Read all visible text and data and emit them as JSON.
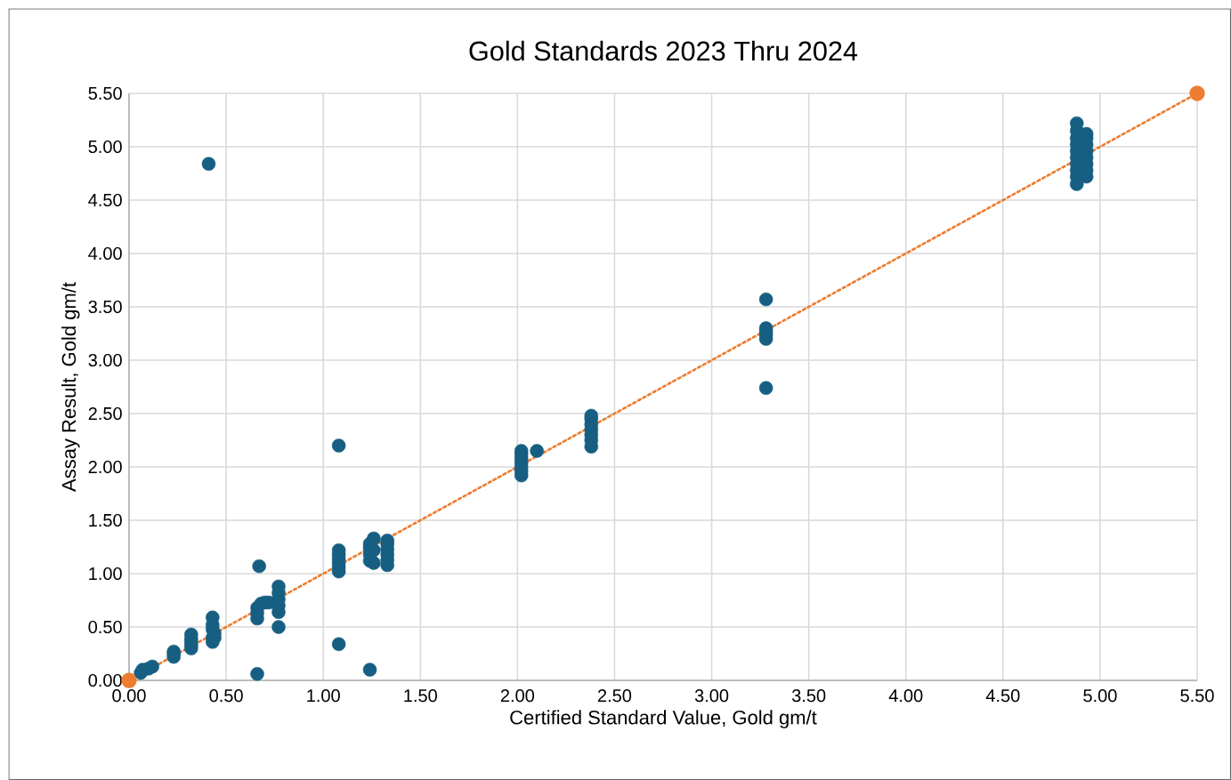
{
  "chart_data": {
    "type": "scatter",
    "title": "Gold  Standards 2023 Thru 2024",
    "xlabel": "Certified Standard Value, Gold gm/t",
    "ylabel": "Assay Result, Gold gm/t",
    "xlim": [
      0,
      5.5
    ],
    "ylim": [
      0,
      5.5
    ],
    "xticks": [
      {
        "value": 0,
        "label": "0.00"
      },
      {
        "value": 0.5,
        "label": "0.50"
      },
      {
        "value": 1,
        "label": "1.00"
      },
      {
        "value": 1.5,
        "label": "1.50"
      },
      {
        "value": 2,
        "label": "2.00"
      },
      {
        "value": 2.5,
        "label": "2.50"
      },
      {
        "value": 3,
        "label": "3.00"
      },
      {
        "value": 3.5,
        "label": "3.50"
      },
      {
        "value": 4,
        "label": "4.00"
      },
      {
        "value": 4.5,
        "label": "4.50"
      },
      {
        "value": 5,
        "label": "5.00"
      },
      {
        "value": 5.5,
        "label": "5.50"
      }
    ],
    "yticks": [
      {
        "value": 0,
        "label": "0.00"
      },
      {
        "value": 0.5,
        "label": "0.50"
      },
      {
        "value": 1,
        "label": "1.00"
      },
      {
        "value": 1.5,
        "label": "1.50"
      },
      {
        "value": 2,
        "label": "2.00"
      },
      {
        "value": 2.5,
        "label": "2.50"
      },
      {
        "value": 3,
        "label": "3.00"
      },
      {
        "value": 3.5,
        "label": "3.50"
      },
      {
        "value": 4,
        "label": "4.00"
      },
      {
        "value": 4.5,
        "label": "4.50"
      },
      {
        "value": 5,
        "label": "5.00"
      },
      {
        "value": 5.5,
        "label": "5.50"
      }
    ],
    "grid": true,
    "marker": "circle",
    "series": [
      {
        "color": "#175f82",
        "x": [
          0.06,
          0.07,
          0.1,
          0.12,
          0.23,
          0.23,
          0.23,
          0.32,
          0.32,
          0.32,
          0.32,
          0.32,
          0.41,
          0.43,
          0.43,
          0.43,
          0.43,
          0.43,
          0.44,
          0.44,
          0.66,
          0.67,
          0.66,
          0.66,
          0.66,
          0.68,
          0.7,
          0.72,
          0.77,
          0.77,
          0.77,
          0.77,
          0.77,
          0.77,
          1.08,
          1.08,
          1.08,
          1.08,
          1.08,
          1.08,
          1.08,
          1.08,
          1.24,
          1.24,
          1.24,
          1.24,
          1.24,
          1.26,
          1.26,
          1.26,
          1.33,
          1.33,
          1.33,
          1.33,
          1.33,
          1.33,
          2.02,
          2.02,
          2.02,
          2.02,
          2.02,
          2.02,
          2.02,
          2.1,
          2.38,
          2.38,
          2.38,
          2.38,
          2.38,
          2.38,
          2.38,
          3.28,
          3.28,
          3.28,
          3.28,
          3.28,
          3.28,
          4.88,
          4.88,
          4.88,
          4.88,
          4.88,
          4.88,
          4.88,
          4.88,
          4.88,
          4.88,
          4.93,
          4.93,
          4.93,
          4.93,
          4.93,
          4.93,
          4.93,
          4.93
        ],
        "values": [
          0.07,
          0.1,
          0.11,
          0.13,
          0.22,
          0.25,
          0.27,
          0.3,
          0.33,
          0.36,
          0.39,
          0.43,
          4.84,
          0.36,
          0.4,
          0.48,
          0.52,
          0.59,
          0.4,
          0.44,
          0.06,
          1.07,
          0.58,
          0.63,
          0.68,
          0.72,
          0.73,
          0.73,
          0.5,
          0.64,
          0.7,
          0.76,
          0.82,
          0.88,
          0.34,
          2.2,
          1.02,
          1.06,
          1.1,
          1.14,
          1.18,
          1.22,
          0.1,
          1.12,
          1.18,
          1.24,
          1.28,
          1.33,
          1.1,
          1.22,
          1.08,
          1.13,
          1.18,
          1.23,
          1.28,
          1.31,
          1.92,
          1.96,
          2.0,
          2.04,
          2.08,
          2.12,
          2.15,
          2.15,
          2.19,
          2.25,
          2.3,
          2.35,
          2.4,
          2.45,
          2.48,
          3.57,
          2.74,
          3.2,
          3.24,
          3.27,
          3.3,
          4.65,
          4.72,
          4.78,
          4.84,
          4.9,
          4.96,
          5.02,
          5.08,
          5.15,
          5.22,
          4.72,
          4.78,
          4.84,
          4.9,
          4.96,
          5.02,
          5.08,
          5.12
        ]
      },
      {
        "type": "line",
        "color": "#ed7d31",
        "line_style": "dotted",
        "x": [
          0,
          5.5
        ],
        "values": [
          0,
          5.5
        ]
      }
    ]
  }
}
